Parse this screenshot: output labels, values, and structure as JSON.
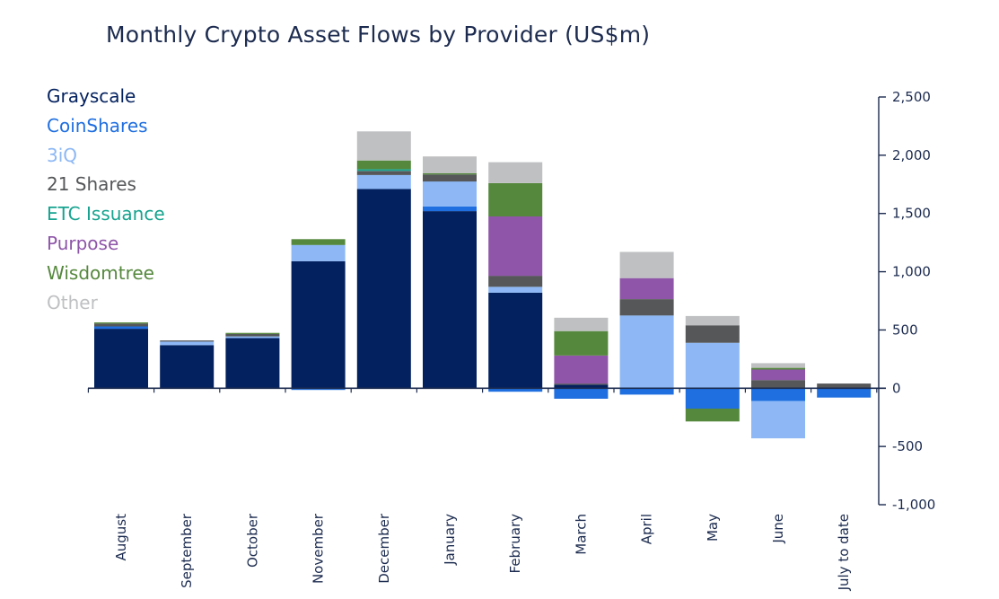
{
  "chart_data": {
    "type": "bar",
    "stacked": true,
    "title": "Monthly Crypto Asset Flows by Provider (US$m)",
    "xlabel": "",
    "ylabel": "",
    "ylim": [
      -1000,
      2500
    ],
    "yticks": [
      2500,
      2000,
      1500,
      1000,
      500,
      0,
      -500,
      -1000
    ],
    "ytick_labels": [
      "2,500",
      "2,000",
      "1,500",
      "1,000",
      "500",
      "0",
      "-500",
      "-1,000"
    ],
    "y_axis_position": "right",
    "legend_position": "left",
    "grid": false,
    "categories": [
      "August",
      "September",
      "October",
      "November",
      "December",
      "January",
      "February",
      "March",
      "April",
      "May",
      "June",
      "July to date"
    ],
    "series": [
      {
        "name": "Grayscale",
        "color": "#03215e",
        "values": [
          510,
          370,
          430,
          1090,
          1710,
          1520,
          820,
          30,
          0,
          0,
          0,
          0
        ]
      },
      {
        "name": "CoinShares",
        "color": "#1f6fe0",
        "values": [
          20,
          0,
          0,
          -15,
          0,
          40,
          -30,
          -90,
          -55,
          -175,
          -110,
          -80
        ]
      },
      {
        "name": "3iQ",
        "color": "#8db8f5",
        "values": [
          0,
          30,
          15,
          140,
          120,
          215,
          50,
          0,
          625,
          390,
          -320,
          0
        ]
      },
      {
        "name": "21 Shares",
        "color": "#555759",
        "values": [
          25,
          10,
          20,
          0,
          35,
          60,
          95,
          10,
          140,
          150,
          70,
          40
        ]
      },
      {
        "name": "ETC Issuance",
        "color": "#16a38f",
        "values": [
          0,
          0,
          0,
          0,
          15,
          0,
          0,
          0,
          0,
          0,
          0,
          0
        ]
      },
      {
        "name": "Purpose",
        "color": "#8e55a8",
        "values": [
          0,
          0,
          0,
          0,
          0,
          0,
          510,
          240,
          180,
          0,
          90,
          0
        ]
      },
      {
        "name": "Wisdomtree",
        "color": "#55883d",
        "values": [
          10,
          0,
          10,
          50,
          75,
          10,
          285,
          210,
          0,
          -110,
          15,
          0
        ]
      },
      {
        "name": "Other",
        "color": "#bfc0c2",
        "values": [
          0,
          0,
          0,
          0,
          250,
          145,
          180,
          115,
          225,
          80,
          40,
          0
        ]
      }
    ]
  }
}
